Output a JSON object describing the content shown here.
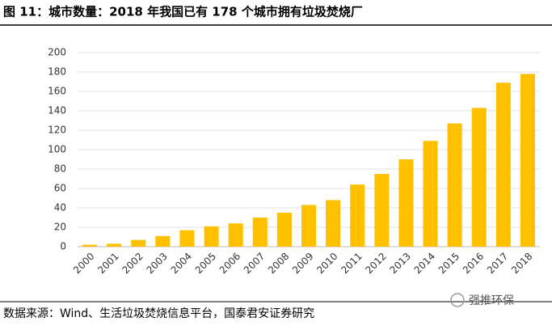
{
  "chart_data": {
    "type": "bar",
    "title": "图 11：城市数量：2018 年我国已有 178 个城市拥有垃圾焚烧厂",
    "source": "数据来源：Wind、生活垃圾焚烧信息平台，国泰君安证券研究",
    "watermark": "强推环保",
    "categories": [
      "2000",
      "2001",
      "2002",
      "2003",
      "2004",
      "2005",
      "2006",
      "2007",
      "2008",
      "2009",
      "2010",
      "2011",
      "2012",
      "2013",
      "2014",
      "2015",
      "2016",
      "2017",
      "2018"
    ],
    "values": [
      2,
      3,
      7,
      11,
      17,
      21,
      24,
      30,
      35,
      43,
      48,
      64,
      75,
      90,
      109,
      127,
      143,
      169,
      178
    ],
    "color": "#FFC000",
    "ylim": [
      0,
      200
    ],
    "yticks": [
      0,
      20,
      40,
      60,
      80,
      100,
      120,
      140,
      160,
      180,
      200
    ],
    "grid": true
  }
}
